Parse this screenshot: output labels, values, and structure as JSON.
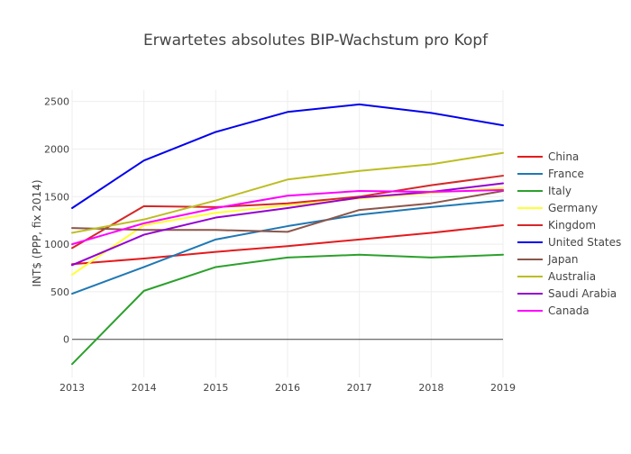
{
  "chart_data": {
    "type": "line",
    "title": "Erwartetes  absolutes BIP-Wachstum pro Kopf",
    "xlabel": "",
    "ylabel": "INT$ (PPP, fix 2014)",
    "x": [
      2013,
      2014,
      2015,
      2016,
      2017,
      2018,
      2019
    ],
    "x_tick_labels": [
      "2013",
      "2014",
      "2015",
      "2016",
      "2017",
      "2018",
      "2019"
    ],
    "xlim": [
      2013,
      2019
    ],
    "ylim": [
      -400,
      2620
    ],
    "y_ticks": [
      0,
      500,
      1000,
      1500,
      2000,
      2500
    ],
    "y_tick_labels": [
      "0",
      "500",
      "1000",
      "1500",
      "2000",
      "2500"
    ],
    "grid": true,
    "legend_position": "right",
    "series": [
      {
        "name": "China",
        "color": "#e41a1c",
        "values": [
          790,
          850,
          920,
          980,
          1050,
          1120,
          1200
        ]
      },
      {
        "name": "France",
        "color": "#1f78b4",
        "values": [
          480,
          760,
          1050,
          1190,
          1310,
          1390,
          1460
        ]
      },
      {
        "name": "Italy",
        "color": "#2ca02c",
        "values": [
          -260,
          510,
          760,
          860,
          890,
          860,
          890
        ]
      },
      {
        "name": "Germany",
        "color": "#ffff33",
        "values": [
          680,
          1200,
          1330,
          1410,
          1480,
          1540,
          1590
        ]
      },
      {
        "name": "Kingdom",
        "color": "#d62728",
        "values": [
          960,
          1400,
          1390,
          1430,
          1500,
          1620,
          1720
        ]
      },
      {
        "name": "United States",
        "color": "#0000ee",
        "values": [
          1380,
          1880,
          2180,
          2390,
          2470,
          2380,
          2250
        ]
      },
      {
        "name": "Japan",
        "color": "#8c564b",
        "values": [
          1170,
          1150,
          1150,
          1130,
          1360,
          1430,
          1560
        ]
      },
      {
        "name": "Australia",
        "color": "#bcbd22",
        "values": [
          1120,
          1260,
          1460,
          1680,
          1770,
          1840,
          1960
        ]
      },
      {
        "name": "Saudi Arabia",
        "color": "#9400d3",
        "values": [
          780,
          1100,
          1280,
          1380,
          1490,
          1550,
          1640
        ]
      },
      {
        "name": "Canada",
        "color": "#ff00ff",
        "values": [
          1000,
          1220,
          1380,
          1510,
          1560,
          1550,
          1570
        ]
      }
    ]
  }
}
